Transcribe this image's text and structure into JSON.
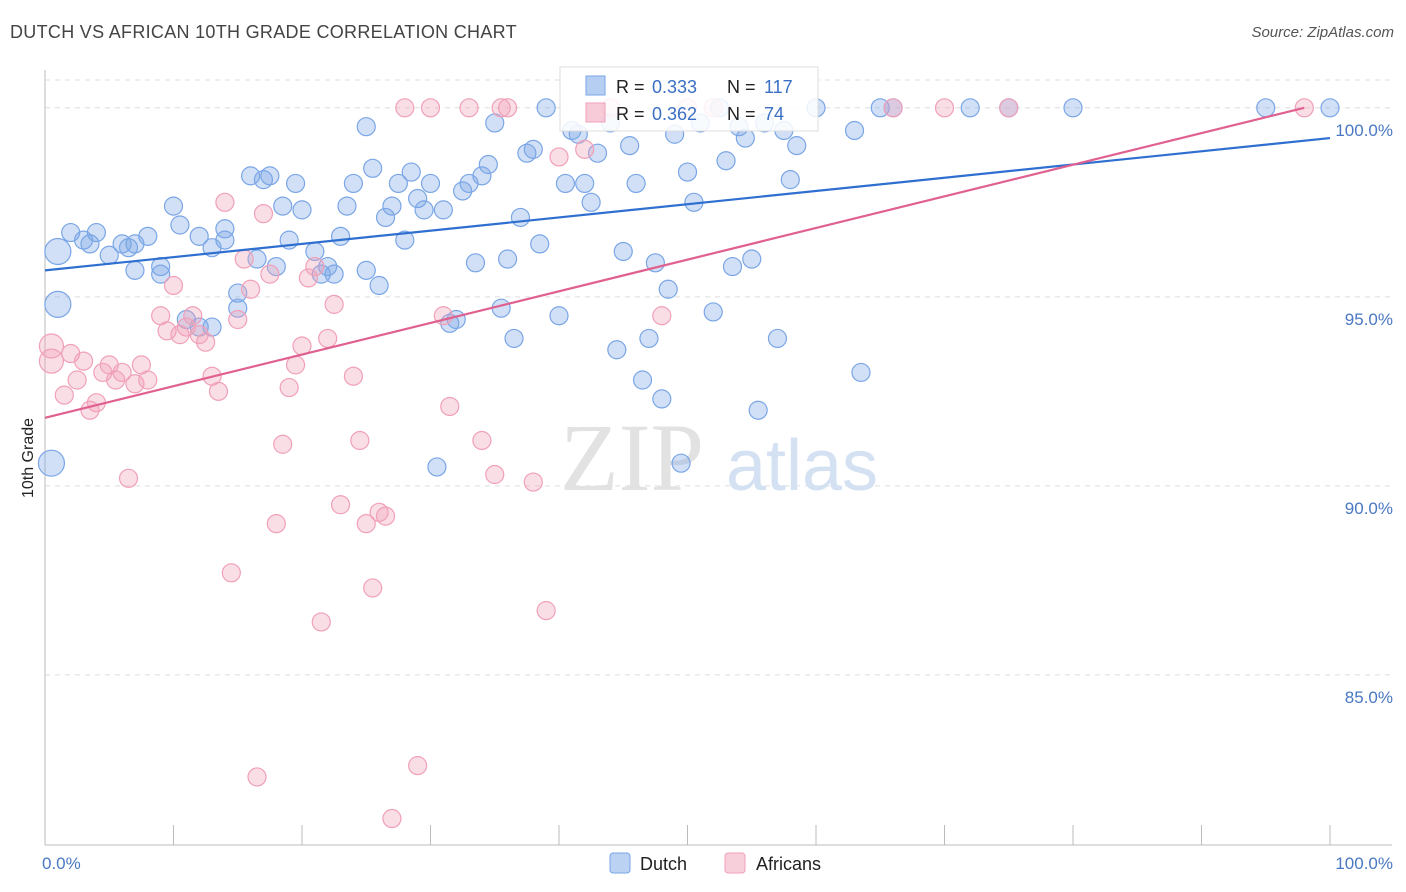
{
  "title": "DUTCH VS AFRICAN 10TH GRADE CORRELATION CHART",
  "source": "Source: ZipAtlas.com",
  "chart_data": {
    "type": "scatter",
    "title": "DUTCH VS AFRICAN 10TH GRADE CORRELATION CHART",
    "ylabel": "10th Grade",
    "xlabel": "",
    "xlim": [
      0,
      100
    ],
    "ylim": [
      80.5,
      101.0
    ],
    "x_tick_labels": [
      "0.0%",
      "100.0%"
    ],
    "y_ticks": [
      85.0,
      90.0,
      95.0,
      100.0
    ],
    "y_tick_labels": [
      "85.0%",
      "90.0%",
      "95.0%",
      "100.0%"
    ],
    "grid": true,
    "legend_position": "top-center",
    "watermark": {
      "zip": "ZIP",
      "atlas": "atlas"
    },
    "series": [
      {
        "name": "Dutch",
        "color": "#7aa6e6",
        "line_color": "#2f6fd0",
        "stats": {
          "r_label": "R = ",
          "r_value": "0.333",
          "n_label": "N = ",
          "n_value": "117"
        },
        "trend": {
          "x": [
            0,
            100
          ],
          "y": [
            95.7,
            99.2
          ]
        },
        "points": [
          [
            1,
            96.2
          ],
          [
            1,
            94.8
          ],
          [
            0.5,
            90.6
          ],
          [
            2,
            96.7
          ],
          [
            3,
            96.5
          ],
          [
            3.5,
            96.4
          ],
          [
            4,
            96.7
          ],
          [
            5,
            96.1
          ],
          [
            6,
            96.4
          ],
          [
            6.5,
            96.3
          ],
          [
            7,
            96.4
          ],
          [
            7,
            95.7
          ],
          [
            8,
            96.6
          ],
          [
            9,
            95.6
          ],
          [
            9,
            95.8
          ],
          [
            10,
            97.4
          ],
          [
            10.5,
            96.9
          ],
          [
            11,
            94.4
          ],
          [
            12,
            96.6
          ],
          [
            12,
            94.2
          ],
          [
            13,
            96.3
          ],
          [
            13,
            94.2
          ],
          [
            14,
            96.5
          ],
          [
            14,
            96.8
          ],
          [
            15,
            95.1
          ],
          [
            15,
            94.7
          ],
          [
            16,
            98.2
          ],
          [
            16.5,
            96.0
          ],
          [
            17,
            98.1
          ],
          [
            17.5,
            98.2
          ],
          [
            18,
            95.8
          ],
          [
            18.5,
            97.4
          ],
          [
            19,
            96.5
          ],
          [
            19.5,
            98.0
          ],
          [
            20,
            97.3
          ],
          [
            21,
            96.2
          ],
          [
            21.5,
            95.6
          ],
          [
            22,
            95.8
          ],
          [
            22.5,
            95.6
          ],
          [
            23,
            96.6
          ],
          [
            23.5,
            97.4
          ],
          [
            24,
            98.0
          ],
          [
            25,
            95.7
          ],
          [
            25.5,
            98.4
          ],
          [
            26,
            95.3
          ],
          [
            26.5,
            97.1
          ],
          [
            25,
            99.5
          ],
          [
            27,
            97.4
          ],
          [
            27.5,
            98.0
          ],
          [
            28,
            96.5
          ],
          [
            28.5,
            98.3
          ],
          [
            29,
            97.6
          ],
          [
            29.5,
            97.3
          ],
          [
            30,
            98.0
          ],
          [
            30.5,
            90.5
          ],
          [
            31,
            97.3
          ],
          [
            31.5,
            94.3
          ],
          [
            32,
            94.4
          ],
          [
            32.5,
            97.8
          ],
          [
            33,
            98.0
          ],
          [
            33.5,
            95.9
          ],
          [
            34,
            98.2
          ],
          [
            34.5,
            98.5
          ],
          [
            35,
            99.6
          ],
          [
            35.5,
            94.7
          ],
          [
            36,
            96.0
          ],
          [
            36.5,
            93.9
          ],
          [
            37,
            97.1
          ],
          [
            37.5,
            98.8
          ],
          [
            38,
            98.9
          ],
          [
            38.5,
            96.4
          ],
          [
            39,
            100.0
          ],
          [
            40,
            94.5
          ],
          [
            40.5,
            98.0
          ],
          [
            41,
            99.4
          ],
          [
            41.5,
            99.3
          ],
          [
            42,
            98.0
          ],
          [
            42.5,
            97.5
          ],
          [
            43,
            98.8
          ],
          [
            44,
            99.6
          ],
          [
            44.5,
            93.6
          ],
          [
            45,
            96.2
          ],
          [
            45.5,
            99.0
          ],
          [
            46,
            98.0
          ],
          [
            46.5,
            92.8
          ],
          [
            47,
            93.9
          ],
          [
            47.5,
            95.9
          ],
          [
            48,
            92.3
          ],
          [
            48.5,
            95.2
          ],
          [
            49,
            99.3
          ],
          [
            49.5,
            90.6
          ],
          [
            50,
            98.3
          ],
          [
            50.5,
            97.5
          ],
          [
            51,
            99.6
          ],
          [
            52,
            94.6
          ],
          [
            52.5,
            100.0
          ],
          [
            53,
            98.6
          ],
          [
            53.5,
            95.8
          ],
          [
            54,
            99.5
          ],
          [
            54.5,
            99.2
          ],
          [
            55,
            96.0
          ],
          [
            55.5,
            92.0
          ],
          [
            56,
            99.6
          ],
          [
            57,
            93.9
          ],
          [
            57.5,
            99.4
          ],
          [
            58,
            98.1
          ],
          [
            58.5,
            99.0
          ],
          [
            60,
            100.0
          ],
          [
            63,
            99.4
          ],
          [
            63.5,
            93.0
          ],
          [
            65,
            100.0
          ],
          [
            66,
            100.0
          ],
          [
            72,
            100.0
          ],
          [
            75,
            100.0
          ],
          [
            80,
            100.0
          ],
          [
            95,
            100.0
          ],
          [
            100,
            100.0
          ]
        ]
      },
      {
        "name": "Africans",
        "color": "#f0a0b8",
        "line_color": "#e06090",
        "stats": {
          "r_label": "R = ",
          "r_value": "0.362",
          "n_label": "N = ",
          "n_value": "74"
        },
        "trend": {
          "x": [
            0,
            98
          ],
          "y": [
            91.8,
            100.0
          ]
        },
        "points": [
          [
            0.5,
            93.7
          ],
          [
            0.5,
            93.3
          ],
          [
            1.5,
            92.4
          ],
          [
            2,
            93.5
          ],
          [
            2.5,
            92.8
          ],
          [
            3,
            93.3
          ],
          [
            3.5,
            92.0
          ],
          [
            4,
            92.2
          ],
          [
            4.5,
            93.0
          ],
          [
            5,
            93.2
          ],
          [
            5.5,
            92.8
          ],
          [
            6,
            93.0
          ],
          [
            6.5,
            90.2
          ],
          [
            7,
            92.7
          ],
          [
            7.5,
            93.2
          ],
          [
            8,
            92.8
          ],
          [
            9,
            94.5
          ],
          [
            9.5,
            94.1
          ],
          [
            10,
            95.3
          ],
          [
            10.5,
            94.0
          ],
          [
            11,
            94.2
          ],
          [
            11.5,
            94.5
          ],
          [
            12,
            94.0
          ],
          [
            12.5,
            93.8
          ],
          [
            13,
            92.9
          ],
          [
            13.5,
            92.5
          ],
          [
            14,
            97.5
          ],
          [
            14.5,
            87.7
          ],
          [
            15,
            94.4
          ],
          [
            15.5,
            96.0
          ],
          [
            16,
            95.2
          ],
          [
            16.5,
            82.3
          ],
          [
            17,
            97.2
          ],
          [
            17.5,
            95.6
          ],
          [
            18,
            89.0
          ],
          [
            18.5,
            91.1
          ],
          [
            19,
            92.6
          ],
          [
            19.5,
            93.2
          ],
          [
            20,
            93.7
          ],
          [
            20.5,
            95.5
          ],
          [
            21,
            95.8
          ],
          [
            21.5,
            86.4
          ],
          [
            22,
            93.9
          ],
          [
            22.5,
            94.8
          ],
          [
            23,
            89.5
          ],
          [
            24,
            92.9
          ],
          [
            24.5,
            91.2
          ],
          [
            25,
            89.0
          ],
          [
            25.5,
            87.3
          ],
          [
            26,
            89.3
          ],
          [
            26.5,
            89.2
          ],
          [
            27,
            81.2
          ],
          [
            28,
            100.0
          ],
          [
            29,
            82.6
          ],
          [
            30,
            100.0
          ],
          [
            31,
            94.5
          ],
          [
            31.5,
            92.1
          ],
          [
            33,
            100.0
          ],
          [
            34,
            91.2
          ],
          [
            35,
            90.3
          ],
          [
            35.5,
            100.0
          ],
          [
            36,
            100.0
          ],
          [
            38,
            90.1
          ],
          [
            39,
            86.7
          ],
          [
            40,
            98.7
          ],
          [
            42,
            98.9
          ],
          [
            44,
            100.0
          ],
          [
            48,
            94.5
          ],
          [
            50,
            100.0
          ],
          [
            52,
            100.0
          ],
          [
            66,
            100.0
          ],
          [
            70,
            100.0
          ],
          [
            75,
            100.0
          ],
          [
            98,
            100.0
          ]
        ]
      }
    ]
  }
}
